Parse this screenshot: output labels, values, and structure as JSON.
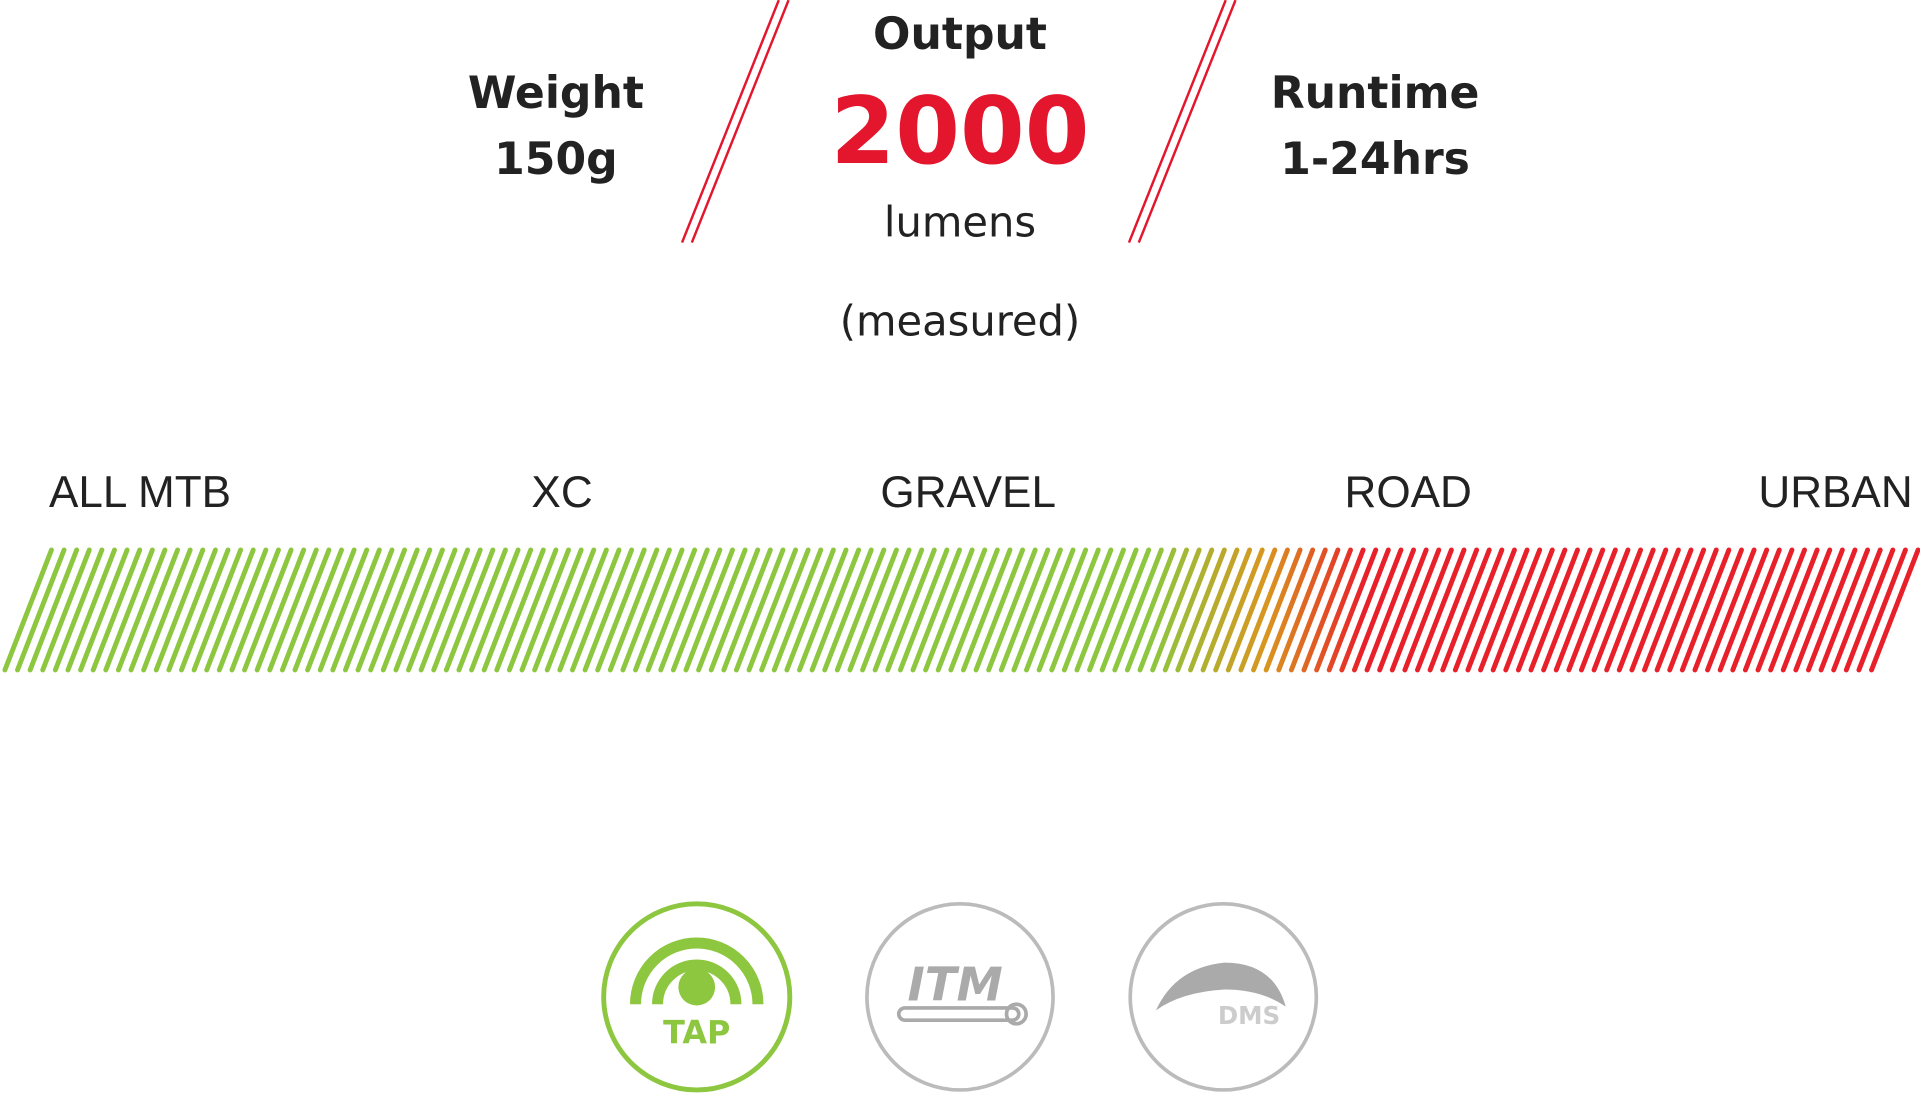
{
  "specs": {
    "weight": {
      "label": "Weight",
      "value": "150g"
    },
    "output": {
      "label": "Output",
      "value": "2000",
      "unit": "lumens",
      "note": "(measured)"
    },
    "runtime": {
      "label": "Runtime",
      "value": "1-24hrs"
    }
  },
  "terrain": {
    "categories": [
      "ALL MTB",
      "XC",
      "GRAVEL",
      "ROAD",
      "URBAN"
    ]
  },
  "features": [
    {
      "label": "TAP"
    },
    {
      "label": "ITM"
    },
    {
      "label": "DMS"
    }
  ]
}
